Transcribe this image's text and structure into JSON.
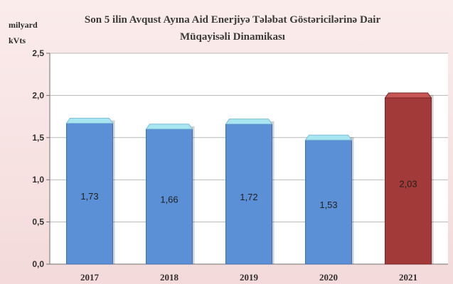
{
  "chart_data": {
    "type": "bar",
    "title": "Son 5 ilin Avqust Ayına Aid Enerjiyə Tələbat Göstəricilərinə Dair Müqayisəli Dinamikası",
    "ylabel": "milyard kVts",
    "xlabel": "",
    "categories": [
      "2017",
      "2018",
      "2019",
      "2020",
      "2021"
    ],
    "values": [
      1.73,
      1.66,
      1.72,
      1.53,
      2.03
    ],
    "value_labels": [
      "1,73",
      "1,66",
      "1,72",
      "1,53",
      "2,03"
    ],
    "ylim": [
      0,
      2.5
    ],
    "yticks": [
      0,
      0.5,
      1.0,
      1.5,
      2.0,
      2.5
    ],
    "ytick_labels": [
      "0,0",
      "0,5",
      "1,0",
      "1,5",
      "2,0",
      "2,5"
    ],
    "grid": true,
    "colors": {
      "default_bar": "#5b8fd6",
      "default_bar_top": "#a8e6f2",
      "highlight_bar": "#a33a3a",
      "highlight_bar_top": "#c65555",
      "highlight_index": 4
    }
  }
}
